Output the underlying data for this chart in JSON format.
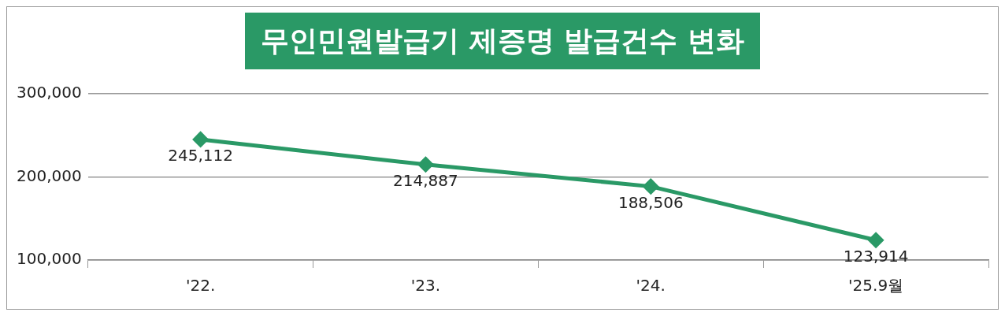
{
  "chart_data": {
    "type": "line",
    "title": "무인민원발급기 제증명 발급건수 변화",
    "categories": [
      "'22.",
      "'23.",
      "'24.",
      "'25.9월"
    ],
    "series": [
      {
        "color": "#2a9966",
        "values": [
          245112,
          214887,
          188506,
          123914
        ],
        "value_labels": [
          "245,112",
          "214,887",
          "188,506",
          "123,914"
        ]
      }
    ],
    "ylim": [
      100000,
      300000
    ],
    "yticks": [
      {
        "value": 100000,
        "label": "100,000"
      },
      {
        "value": 200000,
        "label": "200,000"
      },
      {
        "value": 300000,
        "label": "300,000"
      }
    ],
    "grid": "y",
    "legend": false,
    "marker": "diamond",
    "line_style": "solid"
  }
}
